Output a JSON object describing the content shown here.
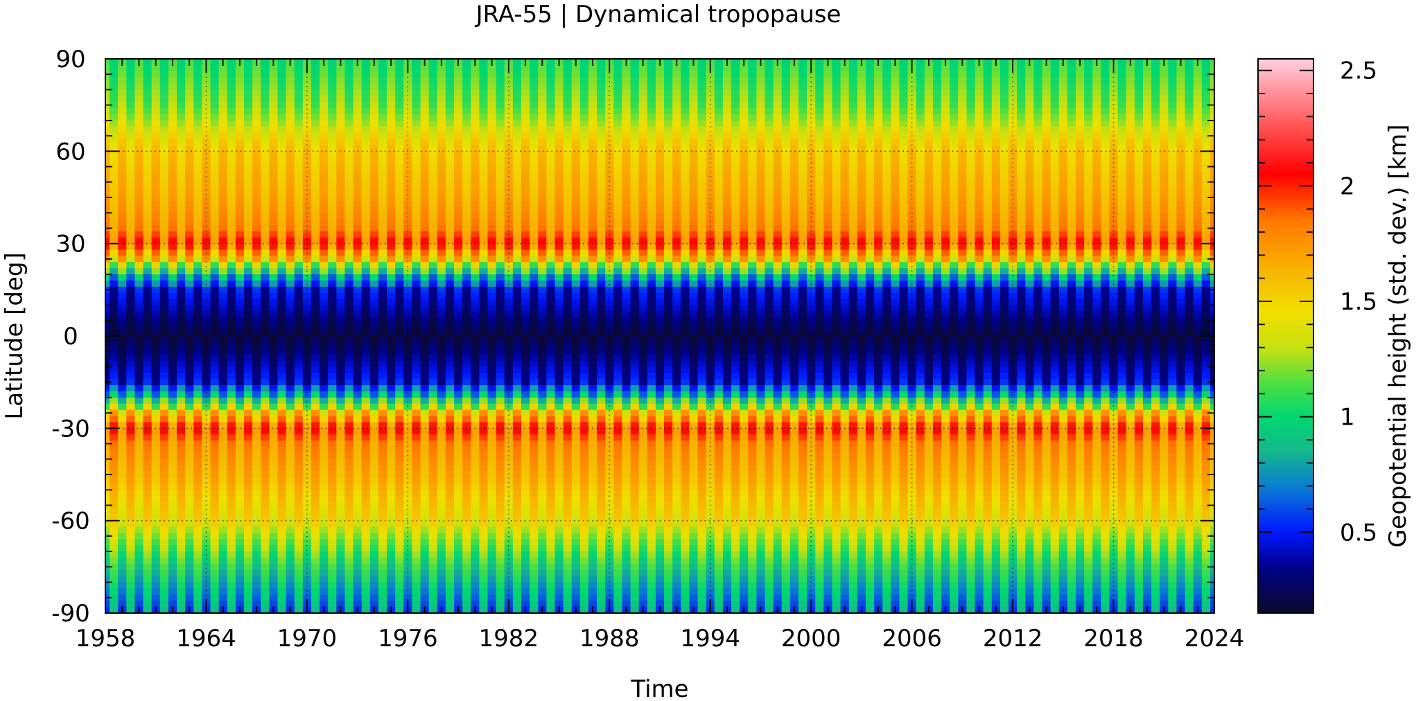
{
  "chart_data": {
    "type": "heatmap",
    "title": "JRA-55 | Dynamical tropopause",
    "xlabel": "Time",
    "ylabel": "Latitude [deg]",
    "colorbar_label": "Geopotential height (std. dev.) [km]",
    "xlim": [
      1958,
      2024
    ],
    "ylim": [
      -90,
      90
    ],
    "x_ticks": [
      "1958",
      "1964",
      "1970",
      "1976",
      "1982",
      "1988",
      "1994",
      "2000",
      "2006",
      "2012",
      "2018",
      "2024"
    ],
    "y_ticks": [
      "90",
      "60",
      "30",
      "0",
      "-30",
      "-60",
      "-90"
    ],
    "colorbar_range": [
      0.15,
      2.55
    ],
    "colorbar_ticks": [
      "0.5",
      "1",
      "1.5",
      "2",
      "2.5"
    ],
    "grid": true,
    "colormap": [
      {
        "v": 0.15,
        "color": "#0a0a2a"
      },
      {
        "v": 0.35,
        "color": "#00008c"
      },
      {
        "v": 0.5,
        "color": "#0018ff"
      },
      {
        "v": 0.7,
        "color": "#0a7fd0"
      },
      {
        "v": 0.85,
        "color": "#14b88c"
      },
      {
        "v": 1.0,
        "color": "#00d870"
      },
      {
        "v": 1.15,
        "color": "#50e040"
      },
      {
        "v": 1.3,
        "color": "#c8e010"
      },
      {
        "v": 1.45,
        "color": "#f0e000"
      },
      {
        "v": 1.65,
        "color": "#f8b000"
      },
      {
        "v": 1.85,
        "color": "#ff7800"
      },
      {
        "v": 2.05,
        "color": "#ff0000"
      },
      {
        "v": 2.25,
        "color": "#ff5050"
      },
      {
        "v": 2.55,
        "color": "#ffd0e0"
      }
    ],
    "latitude_profile": [
      {
        "lat": 90,
        "mean": 1.05,
        "seasonal_amplitude": 0.12
      },
      {
        "lat": 75,
        "mean": 1.2,
        "seasonal_amplitude": 0.15
      },
      {
        "lat": 60,
        "mean": 1.55,
        "seasonal_amplitude": 0.12
      },
      {
        "lat": 45,
        "mean": 1.65,
        "seasonal_amplitude": 0.12
      },
      {
        "lat": 35,
        "mean": 1.75,
        "seasonal_amplitude": 0.15
      },
      {
        "lat": 30,
        "mean": 1.9,
        "seasonal_amplitude": 0.25
      },
      {
        "lat": 25,
        "mean": 1.55,
        "seasonal_amplitude": 0.3
      },
      {
        "lat": 20,
        "mean": 0.9,
        "seasonal_amplitude": 0.3
      },
      {
        "lat": 15,
        "mean": 0.45,
        "seasonal_amplitude": 0.15
      },
      {
        "lat": 0,
        "mean": 0.2,
        "seasonal_amplitude": 0.05
      },
      {
        "lat": -15,
        "mean": 0.45,
        "seasonal_amplitude": 0.15
      },
      {
        "lat": -20,
        "mean": 0.9,
        "seasonal_amplitude": 0.3
      },
      {
        "lat": -25,
        "mean": 1.55,
        "seasonal_amplitude": 0.3
      },
      {
        "lat": -30,
        "mean": 1.9,
        "seasonal_amplitude": 0.25
      },
      {
        "lat": -35,
        "mean": 1.75,
        "seasonal_amplitude": 0.15
      },
      {
        "lat": -45,
        "mean": 1.65,
        "seasonal_amplitude": 0.12
      },
      {
        "lat": -60,
        "mean": 1.45,
        "seasonal_amplitude": 0.15
      },
      {
        "lat": -75,
        "mean": 1.0,
        "seasonal_amplitude": 0.2
      },
      {
        "lat": -90,
        "mean": 0.7,
        "seasonal_amplitude": 0.25
      }
    ],
    "seasonal_period_years": 1
  }
}
